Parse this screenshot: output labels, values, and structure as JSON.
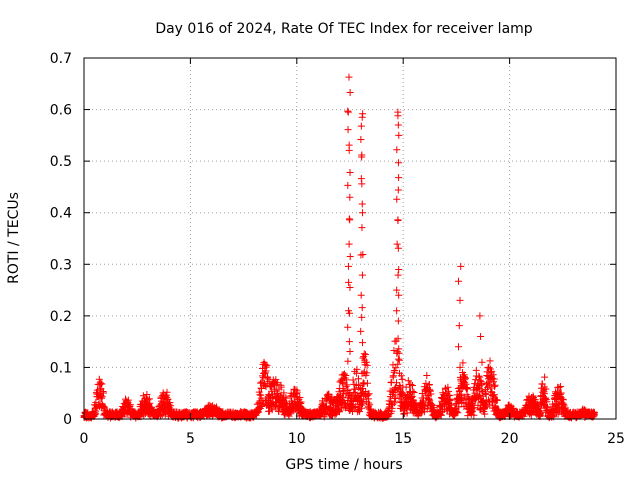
{
  "chart_data": {
    "type": "scatter",
    "title": "Day 016 of 2024, Rate Of TEC Index for receiver lamp",
    "xlabel": "GPS time / hours",
    "ylabel": "ROTI / TECUs",
    "xlim": [
      0,
      25
    ],
    "ylim": [
      0,
      0.7
    ],
    "xticks": [
      0,
      5,
      10,
      15,
      20,
      25
    ],
    "yticks": [
      0,
      0.1,
      0.2,
      0.3,
      0.4,
      0.5,
      0.6,
      0.7
    ],
    "xtick_labels": [
      "0",
      "5",
      "10",
      "15",
      "20",
      "25"
    ],
    "ytick_labels": [
      "0",
      "0.1",
      "0.2",
      "0.3",
      "0.4",
      "0.5",
      "0.6",
      "0.7"
    ],
    "grid": true,
    "marker": "+",
    "color": "#ff0000",
    "data_range_hours": [
      0,
      24
    ],
    "baseline_roti": 0.01,
    "spikes": [
      {
        "center": 0.75,
        "peak": 0.08,
        "width": 0.25
      },
      {
        "center": 2.0,
        "peak": 0.04,
        "width": 0.3
      },
      {
        "center": 2.9,
        "peak": 0.06,
        "width": 0.3
      },
      {
        "center": 3.8,
        "peak": 0.06,
        "width": 0.3
      },
      {
        "center": 6.0,
        "peak": 0.03,
        "width": 0.5
      },
      {
        "center": 8.5,
        "peak": 0.12,
        "width": 0.3
      },
      {
        "center": 9.0,
        "peak": 0.08,
        "width": 0.6
      },
      {
        "center": 9.9,
        "peak": 0.06,
        "width": 0.4
      },
      {
        "center": 11.5,
        "peak": 0.05,
        "width": 0.5
      },
      {
        "center": 12.2,
        "peak": 0.09,
        "width": 0.4
      },
      {
        "center": 12.8,
        "peak": 0.1,
        "width": 0.3
      },
      {
        "center": 13.2,
        "peak": 0.14,
        "width": 0.2
      },
      {
        "center": 14.7,
        "peak": 0.17,
        "width": 0.3
      },
      {
        "center": 15.3,
        "peak": 0.09,
        "width": 0.3
      },
      {
        "center": 16.1,
        "peak": 0.09,
        "width": 0.3
      },
      {
        "center": 17.0,
        "peak": 0.07,
        "width": 0.3
      },
      {
        "center": 17.8,
        "peak": 0.11,
        "width": 0.3
      },
      {
        "center": 18.5,
        "peak": 0.1,
        "width": 0.3
      },
      {
        "center": 19.1,
        "peak": 0.12,
        "width": 0.3
      },
      {
        "center": 20.0,
        "peak": 0.03,
        "width": 0.3
      },
      {
        "center": 21.0,
        "peak": 0.05,
        "width": 0.4
      },
      {
        "center": 21.6,
        "peak": 0.1,
        "width": 0.15
      },
      {
        "center": 22.3,
        "peak": 0.07,
        "width": 0.3
      },
      {
        "center": 23.5,
        "peak": 0.02,
        "width": 0.4
      }
    ],
    "towers": [
      {
        "x": 12.45,
        "values": [
          0.663,
          0.633,
          0.597,
          0.595,
          0.561,
          0.531,
          0.521,
          0.478,
          0.453,
          0.43,
          0.388,
          0.386,
          0.339,
          0.315,
          0.296,
          0.265,
          0.255,
          0.21,
          0.205,
          0.178,
          0.15,
          0.131,
          0.112
        ]
      },
      {
        "x": 13.05,
        "values": [
          0.592,
          0.585,
          0.568,
          0.542,
          0.512,
          0.508,
          0.466,
          0.456,
          0.417,
          0.4,
          0.371,
          0.319,
          0.318,
          0.279,
          0.24,
          0.216,
          0.197,
          0.17,
          0.148,
          0.118
        ]
      },
      {
        "x": 14.75,
        "values": [
          0.595,
          0.588,
          0.57,
          0.55,
          0.522,
          0.497,
          0.468,
          0.444,
          0.426,
          0.386,
          0.385,
          0.339,
          0.331,
          0.29,
          0.279,
          0.25,
          0.24,
          0.21,
          0.19
        ]
      },
      {
        "x": 17.65,
        "values": [
          0.296,
          0.267,
          0.23,
          0.181,
          0.14,
          0.1
        ]
      },
      {
        "x": 18.65,
        "values": [
          0.2,
          0.16,
          0.11
        ]
      }
    ]
  }
}
